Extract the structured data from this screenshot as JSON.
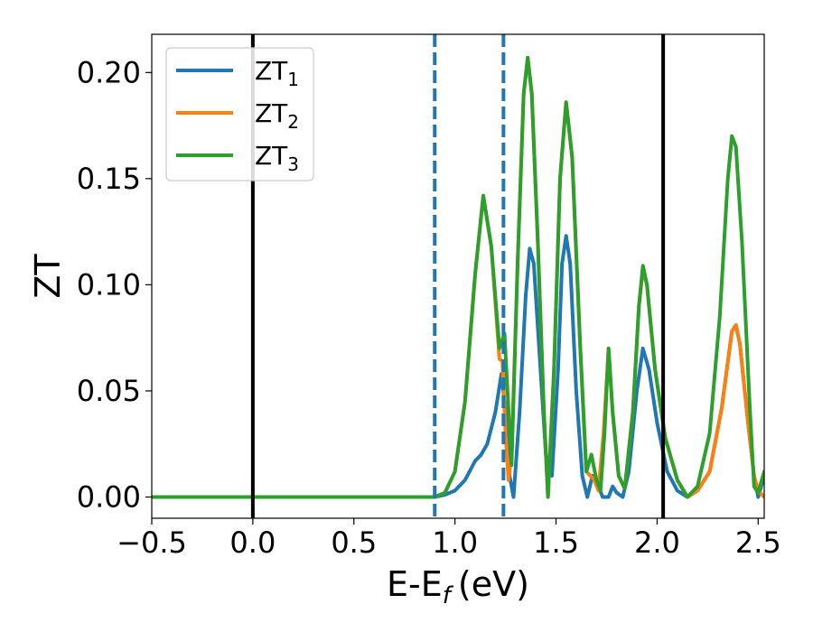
{
  "chart_data": {
    "type": "line",
    "xlabel": "E-E",
    "xlabel_sub": "f",
    "xlabel_unit": "(eV)",
    "ylabel": "ZT",
    "xlim": [
      -0.5,
      2.53
    ],
    "ylim": [
      -0.01,
      0.218
    ],
    "x_ticks": [
      -0.5,
      0.0,
      0.5,
      1.0,
      1.5,
      2.0,
      2.5
    ],
    "x_tick_labels": [
      "−0.5",
      "0.0",
      "0.5",
      "1.0",
      "1.5",
      "2.0",
      "2.5"
    ],
    "y_ticks": [
      0.0,
      0.05,
      0.1,
      0.15,
      0.2
    ],
    "y_tick_labels": [
      "0.00",
      "0.05",
      "0.10",
      "0.15",
      "0.20"
    ],
    "grid": false,
    "legend_position": "top-left",
    "vlines": [
      {
        "x": 0.0,
        "style": "solid",
        "color": "#000000"
      },
      {
        "x": 2.03,
        "style": "solid",
        "color": "#000000"
      },
      {
        "x": 0.9,
        "style": "dashed",
        "color": "#1f77b4"
      },
      {
        "x": 1.24,
        "style": "dashed",
        "color": "#1f77b4"
      }
    ],
    "series": [
      {
        "base": "ZT",
        "sub": "1",
        "color": "#1f77b4",
        "points": [
          [
            -0.5,
            0
          ],
          [
            0.9,
            0
          ],
          [
            0.95,
            0.001
          ],
          [
            1.0,
            0.003
          ],
          [
            1.05,
            0.008
          ],
          [
            1.1,
            0.017
          ],
          [
            1.13,
            0.02
          ],
          [
            1.16,
            0.025
          ],
          [
            1.2,
            0.04
          ],
          [
            1.23,
            0.058
          ],
          [
            1.25,
            0.04
          ],
          [
            1.27,
            0.01
          ],
          [
            1.29,
            0.0
          ],
          [
            1.32,
            0.04
          ],
          [
            1.35,
            0.095
          ],
          [
            1.37,
            0.117
          ],
          [
            1.39,
            0.11
          ],
          [
            1.42,
            0.065
          ],
          [
            1.45,
            0.02
          ],
          [
            1.48,
            0.01
          ],
          [
            1.51,
            0.06
          ],
          [
            1.53,
            0.11
          ],
          [
            1.55,
            0.123
          ],
          [
            1.57,
            0.11
          ],
          [
            1.6,
            0.05
          ],
          [
            1.63,
            0.01
          ],
          [
            1.655,
            0.0
          ],
          [
            1.68,
            0.01
          ],
          [
            1.7,
            0.008
          ],
          [
            1.73,
            0.0
          ],
          [
            1.76,
            0.0
          ],
          [
            1.78,
            0.005
          ],
          [
            1.8,
            0.002
          ],
          [
            1.83,
            0.0
          ],
          [
            1.86,
            0.012
          ],
          [
            1.9,
            0.05
          ],
          [
            1.93,
            0.07
          ],
          [
            1.96,
            0.06
          ],
          [
            2.0,
            0.035
          ],
          [
            2.05,
            0.012
          ],
          [
            2.1,
            0.003
          ],
          [
            2.15,
            0.0
          ],
          [
            2.2,
            0.003
          ],
          [
            2.26,
            0.012
          ],
          [
            2.32,
            0.042
          ],
          [
            2.37,
            0.078
          ],
          [
            2.39,
            0.081
          ],
          [
            2.41,
            0.072
          ],
          [
            2.45,
            0.035
          ],
          [
            2.48,
            0.01
          ],
          [
            2.5,
            0.0
          ],
          [
            2.53,
            0.01
          ]
        ]
      },
      {
        "base": "ZT",
        "sub": "2",
        "color": "#ff7f0e",
        "points": [
          [
            -0.5,
            0
          ],
          [
            0.9,
            0
          ],
          [
            0.95,
            0.002
          ],
          [
            1.0,
            0.012
          ],
          [
            1.05,
            0.045
          ],
          [
            1.1,
            0.105
          ],
          [
            1.14,
            0.142
          ],
          [
            1.18,
            0.118
          ],
          [
            1.22,
            0.065
          ],
          [
            1.235,
            0.064
          ],
          [
            1.25,
            0.03
          ],
          [
            1.265,
            0.008
          ],
          [
            1.28,
            0.02
          ],
          [
            1.31,
            0.11
          ],
          [
            1.34,
            0.19
          ],
          [
            1.36,
            0.207
          ],
          [
            1.38,
            0.19
          ],
          [
            1.41,
            0.12
          ],
          [
            1.44,
            0.04
          ],
          [
            1.46,
            0.0
          ],
          [
            1.49,
            0.06
          ],
          [
            1.52,
            0.15
          ],
          [
            1.55,
            0.186
          ],
          [
            1.58,
            0.16
          ],
          [
            1.62,
            0.07
          ],
          [
            1.65,
            0.012
          ],
          [
            1.67,
            0.01
          ],
          [
            1.69,
            0.008
          ],
          [
            1.71,
            0.003
          ],
          [
            1.735,
            0.03
          ],
          [
            1.76,
            0.07
          ],
          [
            1.78,
            0.04
          ],
          [
            1.81,
            0.01
          ],
          [
            1.84,
            0.004
          ],
          [
            1.88,
            0.04
          ],
          [
            1.91,
            0.09
          ],
          [
            1.93,
            0.107
          ],
          [
            1.95,
            0.1
          ],
          [
            1.99,
            0.06
          ],
          [
            2.04,
            0.028
          ],
          [
            2.1,
            0.008
          ],
          [
            2.15,
            0.0
          ],
          [
            2.2,
            0.003
          ],
          [
            2.26,
            0.012
          ],
          [
            2.32,
            0.042
          ],
          [
            2.37,
            0.078
          ],
          [
            2.39,
            0.081
          ],
          [
            2.41,
            0.072
          ],
          [
            2.45,
            0.035
          ],
          [
            2.48,
            0.01
          ],
          [
            2.5,
            0.003
          ],
          [
            2.53,
            0.0
          ]
        ]
      },
      {
        "base": "ZT",
        "sub": "3",
        "color": "#2ca02c",
        "points": [
          [
            -0.5,
            0
          ],
          [
            0.9,
            0
          ],
          [
            0.95,
            0.002
          ],
          [
            1.0,
            0.012
          ],
          [
            1.05,
            0.045
          ],
          [
            1.1,
            0.105
          ],
          [
            1.14,
            0.142
          ],
          [
            1.18,
            0.118
          ],
          [
            1.22,
            0.07
          ],
          [
            1.245,
            0.077
          ],
          [
            1.26,
            0.05
          ],
          [
            1.28,
            0.015
          ],
          [
            1.31,
            0.11
          ],
          [
            1.34,
            0.19
          ],
          [
            1.36,
            0.207
          ],
          [
            1.38,
            0.19
          ],
          [
            1.41,
            0.12
          ],
          [
            1.44,
            0.04
          ],
          [
            1.46,
            0.0
          ],
          [
            1.49,
            0.06
          ],
          [
            1.52,
            0.15
          ],
          [
            1.55,
            0.186
          ],
          [
            1.58,
            0.16
          ],
          [
            1.62,
            0.07
          ],
          [
            1.65,
            0.012
          ],
          [
            1.675,
            0.02
          ],
          [
            1.7,
            0.008
          ],
          [
            1.72,
            0.003
          ],
          [
            1.74,
            0.03
          ],
          [
            1.76,
            0.07
          ],
          [
            1.78,
            0.04
          ],
          [
            1.81,
            0.01
          ],
          [
            1.84,
            0.004
          ],
          [
            1.88,
            0.04
          ],
          [
            1.91,
            0.09
          ],
          [
            1.93,
            0.109
          ],
          [
            1.95,
            0.1
          ],
          [
            1.99,
            0.06
          ],
          [
            2.04,
            0.028
          ],
          [
            2.1,
            0.008
          ],
          [
            2.15,
            0.0
          ],
          [
            2.2,
            0.005
          ],
          [
            2.26,
            0.03
          ],
          [
            2.31,
            0.085
          ],
          [
            2.35,
            0.15
          ],
          [
            2.37,
            0.17
          ],
          [
            2.39,
            0.165
          ],
          [
            2.42,
            0.12
          ],
          [
            2.46,
            0.04
          ],
          [
            2.48,
            0.005
          ],
          [
            2.5,
            0.002
          ],
          [
            2.53,
            0.012
          ]
        ]
      }
    ]
  }
}
